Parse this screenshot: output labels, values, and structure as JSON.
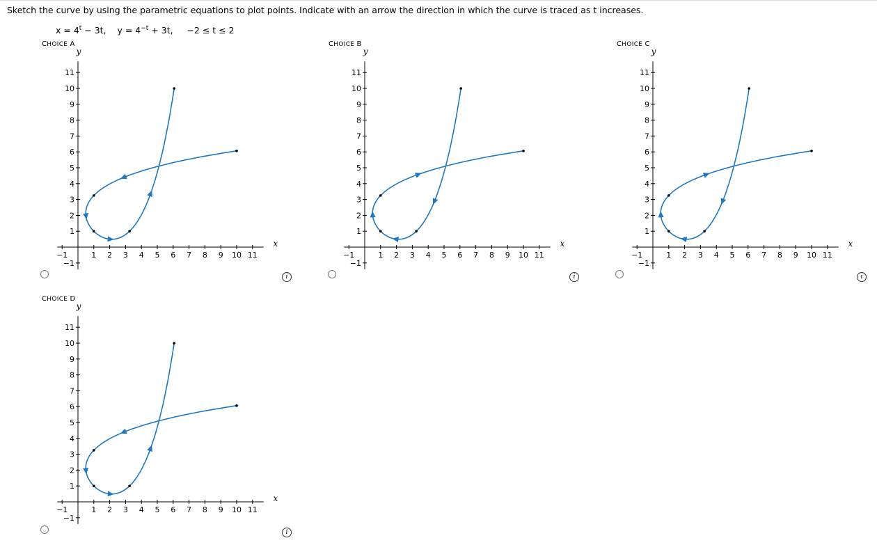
{
  "instruction": "Sketch the curve by using the parametric equations to plot points. Indicate with an arrow the direction in which the curve is traced as t increases.",
  "equation": {
    "x_label": "x = 4",
    "x_exp": "t",
    "x_rest": " − 3t,",
    "y_label": "y = 4",
    "y_exp": "−t",
    "y_rest": " + 3t,",
    "range": "−2 ≤ t ≤ 2"
  },
  "axis": {
    "x_name": "x",
    "y_name": "y",
    "x_ticks": [
      "−1",
      "1",
      "2",
      "3",
      "4",
      "5",
      "6",
      "7",
      "8",
      "9",
      "10",
      "11"
    ],
    "y_ticks": [
      "11",
      "10",
      "9",
      "8",
      "7",
      "6",
      "5",
      "4",
      "3",
      "2",
      "1",
      "−1"
    ]
  },
  "choices": [
    {
      "id": "A",
      "label": "Choice A",
      "selected": false,
      "variant": "A"
    },
    {
      "id": "B",
      "label": "Choice B",
      "selected": false,
      "variant": "B"
    },
    {
      "id": "C",
      "label": "Choice C",
      "selected": false,
      "variant": "C"
    },
    {
      "id": "D",
      "label": "Choice D",
      "selected": false,
      "variant": "D"
    }
  ],
  "colors": {
    "curve": "#1f78c1",
    "axis": "#000000"
  },
  "info_icon": "i"
}
